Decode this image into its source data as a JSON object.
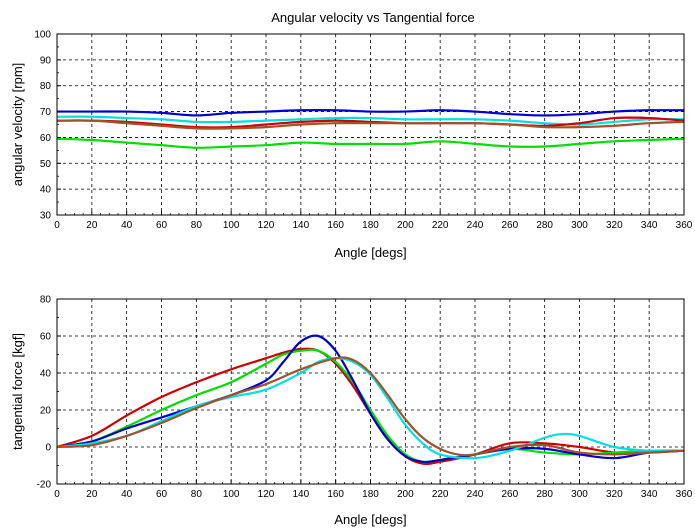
{
  "figure": {
    "title": "Angular velocity vs Tangential force"
  },
  "chart_data": [
    {
      "type": "line",
      "title": "Angular velocity vs Tangential force",
      "xlabel": "Angle [degs]",
      "ylabel": "angular velocity [rpm]",
      "xlim": [
        0,
        360
      ],
      "ylim": [
        30,
        100
      ],
      "xticks": [
        "0",
        "20",
        "40",
        "60",
        "80",
        "100",
        "120",
        "140",
        "160",
        "180",
        "200",
        "220",
        "240",
        "260",
        "280",
        "300",
        "320",
        "340",
        "360"
      ],
      "yticks": [
        "30",
        "40",
        "50",
        "60",
        "70",
        "80",
        "90",
        "100"
      ],
      "grid": true,
      "legend": "none",
      "series": [
        {
          "color": "#0000cc",
          "x": [
            0,
            20,
            40,
            60,
            80,
            100,
            120,
            140,
            160,
            180,
            200,
            220,
            240,
            260,
            280,
            300,
            320,
            340,
            360
          ],
          "y": [
            70,
            70,
            70,
            69.5,
            68.5,
            69.5,
            70,
            70.5,
            70.5,
            70,
            70,
            70.5,
            70,
            69,
            68.5,
            69,
            70,
            70.5,
            70.5
          ]
        },
        {
          "color": "#00e0e0",
          "x": [
            0,
            20,
            40,
            60,
            80,
            100,
            120,
            140,
            160,
            180,
            200,
            220,
            240,
            260,
            280,
            300,
            320,
            340,
            360
          ],
          "y": [
            68,
            68,
            67.5,
            67,
            66,
            66,
            66.5,
            67,
            67.5,
            67.5,
            67,
            67,
            67,
            66.5,
            65.5,
            65,
            66,
            67,
            67
          ]
        },
        {
          "color": "#cc0000",
          "x": [
            0,
            20,
            40,
            60,
            80,
            100,
            120,
            140,
            160,
            180,
            200,
            220,
            240,
            260,
            280,
            300,
            320,
            340,
            360
          ],
          "y": [
            66.5,
            66.5,
            66,
            65,
            64,
            64,
            65,
            66,
            66.5,
            66,
            65.5,
            65.5,
            65.5,
            65,
            64.5,
            65.5,
            67.5,
            67.5,
            66.5
          ]
        },
        {
          "color": "#a0522d",
          "x": [
            0,
            20,
            40,
            60,
            80,
            100,
            120,
            140,
            160,
            180,
            200,
            220,
            240,
            260,
            280,
            300,
            320,
            340,
            360
          ],
          "y": [
            66.5,
            66.5,
            65.5,
            64.5,
            63.5,
            63.5,
            64,
            65,
            65.5,
            65.5,
            65.5,
            65.5,
            65.5,
            65,
            64,
            64,
            64.5,
            65.5,
            66
          ]
        },
        {
          "color": "#00dd00",
          "x": [
            0,
            20,
            40,
            60,
            80,
            100,
            120,
            140,
            160,
            180,
            200,
            220,
            240,
            260,
            280,
            300,
            320,
            340,
            360
          ],
          "y": [
            59.5,
            59,
            58,
            57,
            56,
            56.5,
            57,
            58,
            57.5,
            57.5,
            57.5,
            58.5,
            57.5,
            56.5,
            56.5,
            57.5,
            58.5,
            59,
            59.5
          ]
        }
      ]
    },
    {
      "type": "line",
      "title": "",
      "xlabel": "Angle [degs]",
      "ylabel": "tangential force [kgf]",
      "xlim": [
        0,
        360
      ],
      "ylim": [
        -20,
        80
      ],
      "xticks": [
        "0",
        "20",
        "40",
        "60",
        "80",
        "100",
        "120",
        "140",
        "160",
        "180",
        "200",
        "220",
        "240",
        "260",
        "280",
        "300",
        "320",
        "340",
        "360"
      ],
      "yticks": [
        "-20",
        "0",
        "20",
        "40",
        "60",
        "80"
      ],
      "grid": true,
      "legend": "none",
      "series": [
        {
          "color": "#cc0000",
          "x": [
            0,
            20,
            40,
            60,
            80,
            100,
            120,
            130,
            140,
            150,
            160,
            170,
            180,
            190,
            200,
            210,
            220,
            240,
            260,
            280,
            300,
            320,
            340,
            360
          ],
          "y": [
            0,
            6,
            17,
            27,
            35,
            42,
            48,
            51,
            53,
            52,
            45,
            33,
            18,
            5,
            -5,
            -9,
            -8,
            -4,
            2,
            2,
            0,
            -3,
            -3,
            -2
          ]
        },
        {
          "color": "#00dd00",
          "x": [
            0,
            20,
            40,
            60,
            80,
            100,
            120,
            130,
            140,
            150,
            160,
            170,
            180,
            190,
            200,
            210,
            220,
            240,
            260,
            280,
            300,
            320,
            340,
            360
          ],
          "y": [
            0,
            3,
            11,
            20,
            28,
            35,
            45,
            50,
            52,
            52,
            46,
            35,
            20,
            6,
            -4,
            -8,
            -7,
            -4,
            -1,
            -3,
            -4,
            -3,
            -2,
            -2
          ]
        },
        {
          "color": "#0000cc",
          "x": [
            0,
            20,
            40,
            60,
            80,
            100,
            120,
            130,
            140,
            150,
            160,
            170,
            180,
            190,
            200,
            210,
            220,
            240,
            260,
            280,
            300,
            320,
            340,
            360
          ],
          "y": [
            0,
            3,
            10,
            16,
            22,
            28,
            36,
            46,
            57,
            60,
            52,
            36,
            18,
            4,
            -5,
            -8,
            -7,
            -4,
            -1,
            -1,
            -4,
            -6,
            -3,
            -2
          ]
        },
        {
          "color": "#00e0e0",
          "x": [
            0,
            20,
            40,
            60,
            80,
            100,
            120,
            140,
            150,
            160,
            170,
            180,
            190,
            200,
            210,
            220,
            240,
            260,
            280,
            290,
            300,
            320,
            340,
            360
          ],
          "y": [
            0,
            2,
            6,
            14,
            22,
            27,
            31,
            40,
            46,
            48,
            46,
            39,
            26,
            12,
            2,
            -4,
            -6,
            -2,
            5,
            7,
            6,
            0,
            -2,
            -2
          ]
        },
        {
          "color": "#a0522d",
          "x": [
            0,
            20,
            40,
            60,
            80,
            100,
            120,
            140,
            160,
            170,
            180,
            190,
            200,
            210,
            220,
            230,
            240,
            260,
            280,
            300,
            320,
            340,
            360
          ],
          "y": [
            0,
            1,
            6,
            13,
            21,
            28,
            34,
            42,
            48,
            47,
            40,
            28,
            15,
            5,
            -1,
            -4,
            -4,
            0,
            1,
            -3,
            -4,
            -3,
            -2
          ]
        }
      ]
    }
  ]
}
